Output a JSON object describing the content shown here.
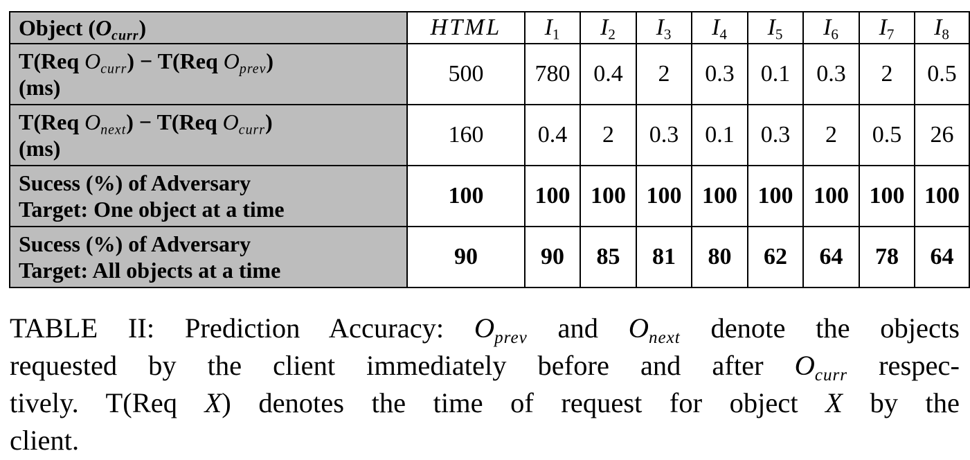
{
  "table": {
    "header": {
      "row_label": {
        "text": "Object (",
        "var": "O",
        "sub": "curr",
        "close": ")"
      },
      "columns": [
        {
          "text": "HTML",
          "sub": ""
        },
        {
          "text": "I",
          "sub": "1"
        },
        {
          "text": "I",
          "sub": "2"
        },
        {
          "text": "I",
          "sub": "3"
        },
        {
          "text": "I",
          "sub": "4"
        },
        {
          "text": "I",
          "sub": "5"
        },
        {
          "text": "I",
          "sub": "6"
        },
        {
          "text": "I",
          "sub": "7"
        },
        {
          "text": "I",
          "sub": "8"
        }
      ]
    },
    "rows": [
      {
        "label_line1": {
          "a": "T(Req ",
          "var_a": "O",
          "sub_a": "curr",
          "mid": ") − T(Req ",
          "var_b": "O",
          "sub_b": "prev",
          "end": ")"
        },
        "label_line2": "(ms)",
        "values": [
          "500",
          "780",
          "0.4",
          "2",
          "0.3",
          "0.1",
          "0.3",
          "2",
          "0.5"
        ]
      },
      {
        "label_line1": {
          "a": "T(Req ",
          "var_a": "O",
          "sub_a": "next",
          "mid": ") − T(Req ",
          "var_b": "O",
          "sub_b": "curr",
          "end": ")"
        },
        "label_line2": "(ms)",
        "values": [
          "160",
          "0.4",
          "2",
          "0.3",
          "0.1",
          "0.3",
          "2",
          "0.5",
          "26"
        ]
      },
      {
        "label_line1": "Sucess (%) of Adversary",
        "label_line2": "Target: One object at a time",
        "values": [
          "100",
          "100",
          "100",
          "100",
          "100",
          "100",
          "100",
          "100",
          "100"
        ]
      },
      {
        "label_line1": "Sucess (%) of Adversary",
        "label_line2": "Target: All objects at a time",
        "values": [
          "90",
          "90",
          "85",
          "81",
          "80",
          "62",
          "64",
          "78",
          "64"
        ]
      }
    ]
  },
  "caption": {
    "l1_a": "TABLE II: Prediction Accuracy: ",
    "l1_var1": "O",
    "l1_sub1": "prev",
    "l1_b": " and ",
    "l1_var2": "O",
    "l1_sub2": "next",
    "l1_c": " denote the objects",
    "l2_a": "requested by the client immediately before and after ",
    "l2_var": "O",
    "l2_sub": "curr",
    "l2_b": " respec-",
    "l3_a": "tively. T(Req ",
    "l3_var1": "X",
    "l3_b": ") denotes the time of request for object ",
    "l3_var2": "X",
    "l3_c": " by the",
    "l4": "client."
  }
}
